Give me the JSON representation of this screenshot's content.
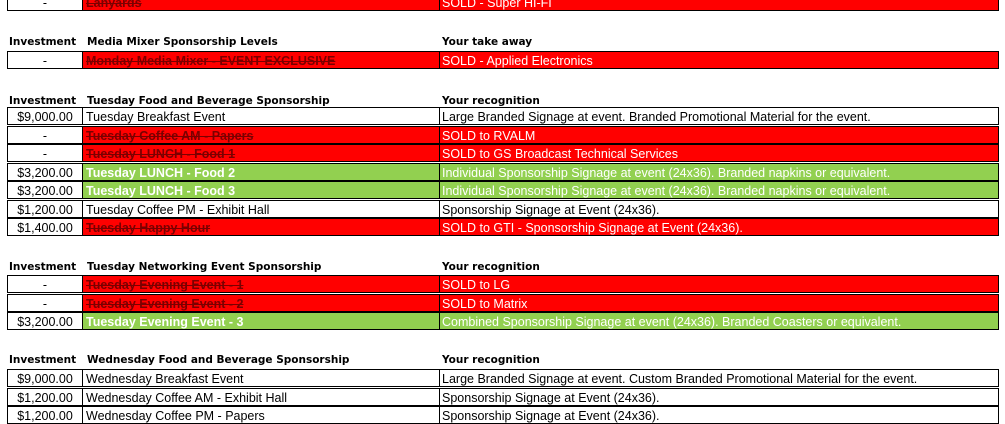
{
  "section0": {
    "rows": [
      {
        "investment": "-",
        "item": "Lanyards",
        "detail": "SOLD - Super HI-FI",
        "style": "red",
        "sold": true
      }
    ]
  },
  "section1": {
    "headers": {
      "investment": "Investment",
      "item": "Media Mixer Sponsorship Levels",
      "detail": "Your take away"
    },
    "rows": [
      {
        "investment": "-",
        "item": "Monday Media Mixer - EVENT EXCLUSIVE",
        "detail": "SOLD - Applied Electronics",
        "style": "red",
        "sold": true
      }
    ]
  },
  "section2": {
    "headers": {
      "investment": "Investment",
      "item": "Tuesday Food and Beverage Sponsorship",
      "detail": "Your recognition"
    },
    "rows": [
      {
        "investment": "$9,000.00",
        "item": "Tuesday Breakfast Event",
        "detail": "Large Branded Signage at event. Branded Promotional Material for the event.",
        "style": "plain",
        "sold": false
      },
      {
        "investment": "-",
        "item": "Tuesday  Coffee AM - Papers",
        "detail": "SOLD to RVALM",
        "style": "red",
        "sold": true
      },
      {
        "investment": "-",
        "item": "Tuesday  LUNCH - Food 1",
        "detail": "SOLD to GS Broadcast Technical Services",
        "style": "red",
        "sold": true
      },
      {
        "investment": "$3,200.00",
        "item": "Tuesday  LUNCH - Food 2",
        "detail": "Individual Sponsorship Signage at event (24x36). Branded napkins or equivalent.",
        "style": "green",
        "sold": false
      },
      {
        "investment": "$3,200.00",
        "item": "Tuesday  LUNCH - Food 3",
        "detail": "Individual Sponsorship Signage at event (24x36). Branded napkins or equivalent.",
        "style": "green",
        "sold": false
      },
      {
        "investment": "$1,200.00",
        "item": "Tuesday  Coffee PM - Exhibit Hall",
        "detail": "Sponsorship Signage at Event (24x36).",
        "style": "plain",
        "sold": false
      },
      {
        "investment": "$1,400.00",
        "item": "Tuesday Happy Hour",
        "detail": "SOLD to GTI - Sponsorship Signage at Event (24x36).",
        "style": "red",
        "sold": true
      }
    ]
  },
  "section3": {
    "headers": {
      "investment": "Investment",
      "item": "Tuesday Networking Event Sponsorship",
      "detail": "Your recognition"
    },
    "rows": [
      {
        "investment": "-",
        "item": "Tuesday Evening Event - 1",
        "detail": "SOLD to LG",
        "style": "red",
        "sold": true
      },
      {
        "investment": "-",
        "item": "Tuesday Evening Event - 2",
        "detail": "SOLD to Matrix",
        "style": "red",
        "sold": true
      },
      {
        "investment": "$3,200.00",
        "item": "Tuesday Evening Event - 3",
        "detail": "Combined Sponsorship Signage at event (24x36). Branded Coasters or equivalent.",
        "style": "green",
        "sold": false
      }
    ]
  },
  "section4": {
    "headers": {
      "investment": "Investment",
      "item": "Wednesday Food and Beverage Sponsorship",
      "detail": "Your recognition"
    },
    "rows": [
      {
        "investment": "$9,000.00",
        "item": "Wednesday Breakfast Event",
        "detail": "Large Branded Signage at event. Custom Branded Promotional Material for the event.",
        "style": "plain",
        "sold": false
      },
      {
        "investment": "$1,200.00",
        "item": "Wednesday Coffee AM - Exhibit Hall",
        "detail": "Sponsorship Signage at Event (24x36).",
        "style": "plain",
        "sold": false
      },
      {
        "investment": "$1,200.00",
        "item": "Wednesday Coffee PM - Papers",
        "detail": "Sponsorship Signage at Event (24x36).",
        "style": "plain",
        "sold": false
      }
    ]
  },
  "colors": {
    "sold_red": "#ff0000",
    "available_green": "#92d050",
    "sold_text": "#7a0000"
  }
}
